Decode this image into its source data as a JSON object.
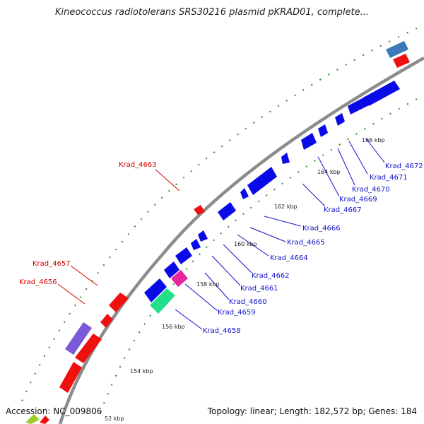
{
  "title": "Kineococcus radiotolerans SRS30216 plasmid pKRAD01, complete...",
  "footer": {
    "accession": "Accession: NC_009806",
    "summary": "Topology: linear; Length: 182,572 bp; Genes: 184"
  },
  "colors": {
    "backbone": "#8c8c8c",
    "forward_gene": "#0a0ae8",
    "reverse_gene": "#f01010",
    "outer_label": "#d40000",
    "inner_label": "#1010c8",
    "tick_dots": "#2a8c2a"
  },
  "ticks": [
    {
      "label": "52 kbp"
    },
    {
      "label": "154 kbp"
    },
    {
      "label": "156 kbp"
    },
    {
      "label": "158 kbp"
    },
    {
      "label": "160 kbp"
    },
    {
      "label": "162 kbp"
    },
    {
      "label": "164 kbp"
    },
    {
      "label": "166 kbp"
    }
  ],
  "outer_labels": [
    {
      "text": "Krad_4663"
    },
    {
      "text": "Krad_4657"
    },
    {
      "text": "Krad_4656"
    }
  ],
  "inner_labels": [
    {
      "text": "Krad_4672"
    },
    {
      "text": "Krad_4671"
    },
    {
      "text": "Krad_4670"
    },
    {
      "text": "Krad_4669"
    },
    {
      "text": "Krad_4667"
    },
    {
      "text": "Krad_4666"
    },
    {
      "text": "Krad_4665"
    },
    {
      "text": "Krad_4664"
    },
    {
      "text": "Krad_4662"
    },
    {
      "text": "Krad_4661"
    },
    {
      "text": "Krad_4660"
    },
    {
      "text": "Krad_4659"
    },
    {
      "text": "Krad_4658"
    }
  ]
}
